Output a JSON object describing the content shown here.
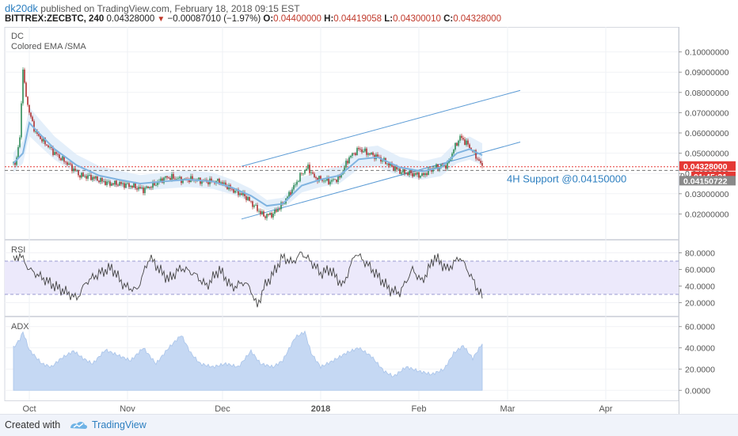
{
  "header": {
    "author": "dk20dk",
    "published": "published on TradingView.com, February 18, 2018 09:15 EST",
    "symbol": "BITTREX:ZECBTC, 240",
    "last": "0.04328000",
    "change": "−0.00087010 (−1.97%)",
    "o_label": "O:",
    "o_value": "0.04400000",
    "h_label": "H:",
    "h_value": "0.04419058",
    "l_label": "L:",
    "l_value": "0.04300010",
    "c_label": "C:",
    "c_value": "0.04328000"
  },
  "footer": {
    "created_with": "Created with",
    "brand": "TradingView"
  },
  "colors": {
    "candle_up": "#2e8b57",
    "candle_down": "#b03030",
    "ema": "#7fb3e0",
    "channel": "#5b9bd5",
    "rsi_band": "#ece9fb",
    "adx_fill": "#c5d8f3",
    "price_tag": "#e53935",
    "support_tag": "#8a8a8a",
    "countdown_tag": "#e53935"
  },
  "chart_data": [
    {
      "type": "candlestick",
      "indicator_labels": [
        "DC",
        "Colored EMA /SMA"
      ],
      "ylim": [
        0.01,
        0.11
      ],
      "y_ticks": [
        "0.02000000",
        "0.03000000",
        "0.04000000",
        "0.05000000",
        "0.06000000",
        "0.07000000",
        "0.08000000",
        "0.09000000",
        "0.10000000"
      ],
      "x_ticks": [
        "Oct",
        "Nov",
        "Dec",
        "2018",
        "Feb",
        "Mar",
        "Apr"
      ],
      "x_tick_day_index": [
        0,
        31,
        61,
        92,
        123,
        151,
        182
      ],
      "price_path": [
        [
          -5,
          0.045
        ],
        [
          -4,
          0.047
        ],
        [
          -3,
          0.058
        ],
        [
          -2,
          0.092
        ],
        [
          -1.5,
          0.083
        ],
        [
          0,
          0.07
        ],
        [
          2,
          0.06
        ],
        [
          5,
          0.055
        ],
        [
          8,
          0.05
        ],
        [
          12,
          0.045
        ],
        [
          16,
          0.039
        ],
        [
          20,
          0.038
        ],
        [
          25,
          0.035
        ],
        [
          28,
          0.035
        ],
        [
          32,
          0.034
        ],
        [
          36,
          0.032
        ],
        [
          40,
          0.035
        ],
        [
          43,
          0.038
        ],
        [
          45,
          0.038
        ],
        [
          48,
          0.037
        ],
        [
          52,
          0.037
        ],
        [
          56,
          0.036
        ],
        [
          60,
          0.036
        ],
        [
          64,
          0.032
        ],
        [
          68,
          0.029
        ],
        [
          71,
          0.024
        ],
        [
          74,
          0.019
        ],
        [
          77,
          0.02
        ],
        [
          80,
          0.025
        ],
        [
          83,
          0.032
        ],
        [
          86,
          0.04
        ],
        [
          88,
          0.043
        ],
        [
          90,
          0.038
        ],
        [
          92,
          0.037
        ],
        [
          95,
          0.036
        ],
        [
          98,
          0.038
        ],
        [
          101,
          0.048
        ],
        [
          104,
          0.052
        ],
        [
          107,
          0.05
        ],
        [
          110,
          0.048
        ],
        [
          113,
          0.045
        ],
        [
          117,
          0.041
        ],
        [
          120,
          0.04
        ],
        [
          124,
          0.039
        ],
        [
          128,
          0.043
        ],
        [
          132,
          0.044
        ],
        [
          134,
          0.052
        ],
        [
          136,
          0.058
        ],
        [
          138,
          0.055
        ],
        [
          140,
          0.051
        ],
        [
          142,
          0.046
        ],
        [
          143,
          0.0433
        ]
      ],
      "ema_path": [
        [
          -5,
          0.045
        ],
        [
          -2,
          0.05
        ],
        [
          0,
          0.065
        ],
        [
          3,
          0.06
        ],
        [
          8,
          0.052
        ],
        [
          15,
          0.044
        ],
        [
          22,
          0.039
        ],
        [
          28,
          0.037
        ],
        [
          35,
          0.035
        ],
        [
          42,
          0.036
        ],
        [
          50,
          0.037
        ],
        [
          58,
          0.036
        ],
        [
          64,
          0.033
        ],
        [
          70,
          0.029
        ],
        [
          75,
          0.024
        ],
        [
          80,
          0.025
        ],
        [
          86,
          0.034
        ],
        [
          92,
          0.037
        ],
        [
          98,
          0.039
        ],
        [
          104,
          0.047
        ],
        [
          110,
          0.048
        ],
        [
          117,
          0.043
        ],
        [
          124,
          0.041
        ],
        [
          130,
          0.043
        ],
        [
          135,
          0.05
        ],
        [
          139,
          0.052
        ],
        [
          143,
          0.049
        ]
      ],
      "channel": {
        "lower": {
          "start": [
            67,
            0.0175
          ],
          "end": [
            155,
            0.0555
          ]
        },
        "upper": {
          "start": [
            67,
            0.0435
          ],
          "end": [
            155,
            0.081
          ]
        }
      },
      "support_level": 0.0415,
      "current_price": 0.04328,
      "annotation": "4H Support @0.04150000",
      "price_tag": "0.04328000",
      "countdown_tag": "01:45:21",
      "countdown_prefix": "0.",
      "support_tag": "0.04150722"
    },
    {
      "type": "line",
      "name": "RSI",
      "ylim": [
        10,
        90
      ],
      "band": [
        30,
        70
      ],
      "y_ticks": [
        "20.0000",
        "40.0000",
        "60.0000",
        "80.0000"
      ],
      "path": [
        [
          -5,
          70
        ],
        [
          -3,
          78
        ],
        [
          0,
          60
        ],
        [
          4,
          50
        ],
        [
          8,
          40
        ],
        [
          12,
          32
        ],
        [
          15,
          25
        ],
        [
          18,
          45
        ],
        [
          22,
          55
        ],
        [
          26,
          62
        ],
        [
          30,
          40
        ],
        [
          34,
          35
        ],
        [
          38,
          75
        ],
        [
          41,
          60
        ],
        [
          44,
          48
        ],
        [
          48,
          62
        ],
        [
          52,
          55
        ],
        [
          56,
          40
        ],
        [
          60,
          60
        ],
        [
          64,
          38
        ],
        [
          68,
          45
        ],
        [
          70,
          35
        ],
        [
          72,
          15
        ],
        [
          74,
          38
        ],
        [
          77,
          55
        ],
        [
          80,
          75
        ],
        [
          83,
          68
        ],
        [
          86,
          80
        ],
        [
          90,
          65
        ],
        [
          92,
          55
        ],
        [
          95,
          60
        ],
        [
          99,
          40
        ],
        [
          103,
          80
        ],
        [
          107,
          65
        ],
        [
          111,
          48
        ],
        [
          114,
          35
        ],
        [
          117,
          32
        ],
        [
          121,
          60
        ],
        [
          124,
          45
        ],
        [
          128,
          75
        ],
        [
          132,
          60
        ],
        [
          136,
          75
        ],
        [
          139,
          55
        ],
        [
          141,
          40
        ],
        [
          143,
          27
        ]
      ]
    },
    {
      "type": "area",
      "name": "ADX",
      "ylim": [
        -5,
        65
      ],
      "y_ticks": [
        "0.0000",
        "20.0000",
        "40.0000",
        "60.0000"
      ],
      "path": [
        [
          -5,
          40
        ],
        [
          -3,
          48
        ],
        [
          -2,
          55
        ],
        [
          0,
          38
        ],
        [
          4,
          25
        ],
        [
          7,
          22
        ],
        [
          10,
          30
        ],
        [
          14,
          37
        ],
        [
          17,
          30
        ],
        [
          20,
          25
        ],
        [
          24,
          38
        ],
        [
          28,
          33
        ],
        [
          32,
          28
        ],
        [
          36,
          40
        ],
        [
          40,
          25
        ],
        [
          44,
          40
        ],
        [
          48,
          52
        ],
        [
          51,
          35
        ],
        [
          54,
          25
        ],
        [
          58,
          22
        ],
        [
          62,
          25
        ],
        [
          66,
          22
        ],
        [
          70,
          37
        ],
        [
          73,
          25
        ],
        [
          77,
          22
        ],
        [
          80,
          28
        ],
        [
          84,
          50
        ],
        [
          87,
          55
        ],
        [
          89,
          35
        ],
        [
          92,
          22
        ],
        [
          96,
          28
        ],
        [
          100,
          35
        ],
        [
          104,
          40
        ],
        [
          108,
          32
        ],
        [
          112,
          18
        ],
        [
          115,
          13
        ],
        [
          119,
          22
        ],
        [
          123,
          18
        ],
        [
          127,
          15
        ],
        [
          131,
          20
        ],
        [
          134,
          35
        ],
        [
          137,
          42
        ],
        [
          140,
          30
        ],
        [
          143,
          44
        ]
      ]
    }
  ]
}
